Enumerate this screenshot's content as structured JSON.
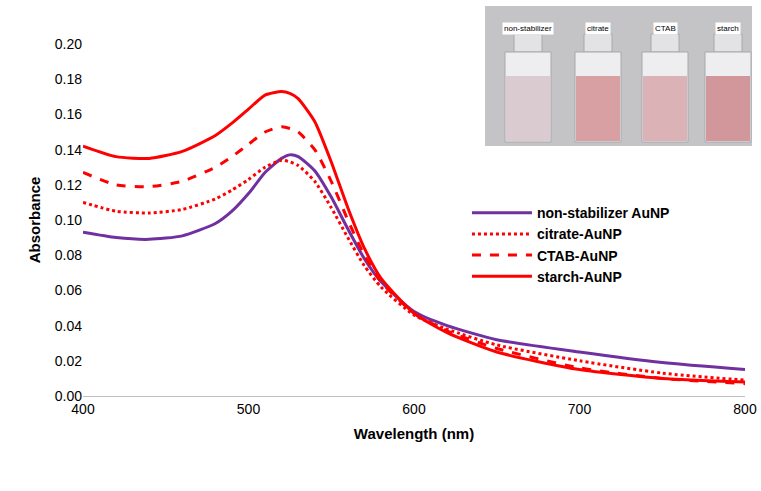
{
  "chart_data": {
    "type": "line",
    "x_label": "Wavelength (nm)",
    "y_label": "Absorbance",
    "x": [
      400,
      420,
      440,
      460,
      480,
      490,
      500,
      510,
      520,
      525,
      530,
      540,
      550,
      560,
      570,
      580,
      600,
      620,
      650,
      700,
      750,
      800
    ],
    "series": [
      {
        "name": "non-stabilizer AuNP",
        "color": "#7030a0",
        "line_style": "solid",
        "values": [
          0.093,
          0.09,
          0.089,
          0.091,
          0.098,
          0.105,
          0.115,
          0.127,
          0.135,
          0.137,
          0.136,
          0.128,
          0.113,
          0.095,
          0.078,
          0.065,
          0.048,
          0.04,
          0.032,
          0.025,
          0.019,
          0.015
        ]
      },
      {
        "name": "citrate-AuNP",
        "color": "#ff0000",
        "line_style": "dot",
        "values": [
          0.11,
          0.105,
          0.104,
          0.106,
          0.112,
          0.117,
          0.123,
          0.13,
          0.134,
          0.133,
          0.131,
          0.122,
          0.107,
          0.09,
          0.074,
          0.062,
          0.046,
          0.038,
          0.029,
          0.02,
          0.013,
          0.009
        ]
      },
      {
        "name": "CTAB-AuNP",
        "color": "#ff0000",
        "line_style": "dash",
        "values": [
          0.127,
          0.12,
          0.119,
          0.122,
          0.13,
          0.136,
          0.143,
          0.15,
          0.153,
          0.152,
          0.15,
          0.14,
          0.122,
          0.1,
          0.08,
          0.065,
          0.047,
          0.037,
          0.027,
          0.016,
          0.01,
          0.007
        ]
      },
      {
        "name": "starch-AuNP",
        "color": "#ff0000",
        "line_style": "solid",
        "values": [
          0.142,
          0.136,
          0.135,
          0.139,
          0.148,
          0.155,
          0.163,
          0.171,
          0.173,
          0.172,
          0.169,
          0.156,
          0.133,
          0.107,
          0.084,
          0.067,
          0.047,
          0.036,
          0.025,
          0.015,
          0.01,
          0.008
        ]
      }
    ],
    "xlim": [
      400,
      800
    ],
    "xticks": [
      400,
      500,
      600,
      700,
      800
    ],
    "ylim": [
      0,
      0.2
    ],
    "yticks": [
      {
        "value": 0,
        "label": "0.00"
      },
      {
        "value": 0.02,
        "label": "0.02"
      },
      {
        "value": 0.04,
        "label": "0.04"
      },
      {
        "value": 0.06,
        "label": "0.06"
      },
      {
        "value": 0.08,
        "label": "0.08"
      },
      {
        "value": 0.1,
        "label": "0.10"
      },
      {
        "value": 0.12,
        "label": "0.12"
      },
      {
        "value": 0.14,
        "label": "0.14"
      },
      {
        "value": 0.16,
        "label": "0.16"
      },
      {
        "value": 0.18,
        "label": "0.18"
      },
      {
        "value": 0.2,
        "label": "0.20"
      }
    ],
    "grid": false,
    "legend": "right",
    "annotations": [
      {
        "text": "non-stabilizer"
      },
      {
        "text": "citrate"
      },
      {
        "text": "CTAB"
      },
      {
        "text": "starch"
      }
    ]
  }
}
